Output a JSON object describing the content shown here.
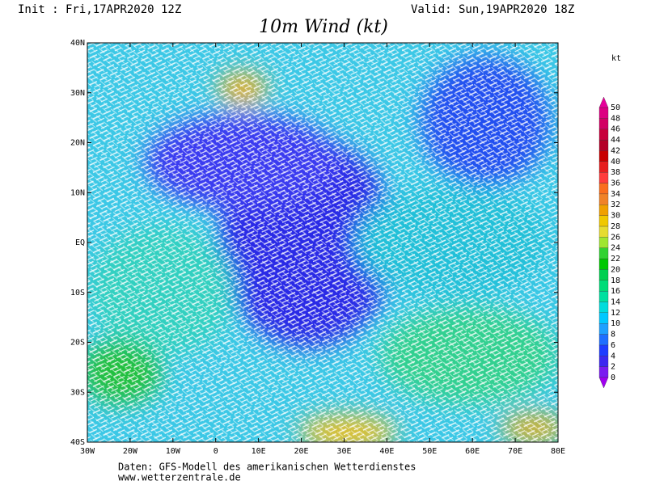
{
  "header": {
    "init": "Init : Fri,17APR2020 12Z",
    "valid": "Valid: Sun,19APR2020 18Z",
    "title": "10m Wind (kt)"
  },
  "map": {
    "lonlim": [
      -30,
      80
    ],
    "latlim": [
      -40,
      40
    ],
    "lon_ticks": [
      {
        "value": -30,
        "label": "30W"
      },
      {
        "value": -20,
        "label": "20W"
      },
      {
        "value": -10,
        "label": "10W"
      },
      0,
      {
        "value": 10,
        "label": "10E"
      },
      {
        "value": 20,
        "label": "20E"
      },
      {
        "value": 30,
        "label": "30E"
      },
      {
        "value": 40,
        "label": "40E"
      },
      {
        "value": 50,
        "label": "50E"
      },
      {
        "value": 60,
        "label": "60E"
      },
      {
        "value": 70,
        "label": "70E"
      },
      {
        "value": 80,
        "label": "80E"
      }
    ],
    "lat_ticks": [
      {
        "value": 40,
        "label": "40N"
      },
      {
        "value": 30,
        "label": "30N"
      },
      {
        "value": 20,
        "label": "20N"
      },
      {
        "value": 10,
        "label": "10N"
      },
      {
        "value": 0,
        "label": "EQ"
      },
      {
        "value": -10,
        "label": "10S"
      },
      {
        "value": -20,
        "label": "20S"
      },
      {
        "value": -30,
        "label": "30S"
      },
      {
        "value": -40,
        "label": "40S"
      }
    ]
  },
  "colorbar": {
    "unit": "kt",
    "levels": [
      0,
      2,
      4,
      6,
      8,
      10,
      12,
      14,
      16,
      18,
      20,
      22,
      24,
      26,
      28,
      30,
      32,
      34,
      36,
      38,
      40,
      42,
      44,
      46,
      48,
      50
    ],
    "colors": [
      "#7a1cf0",
      "#3c28f0",
      "#1e3cff",
      "#1e6eff",
      "#1ea0ff",
      "#00c8ff",
      "#00dcdc",
      "#00e0a0",
      "#00dc78",
      "#00d050",
      "#00c800",
      "#32d232",
      "#a0e632",
      "#e6dc32",
      "#f0c800",
      "#f0a000",
      "#f08228",
      "#fa6e1e",
      "#ff3c3c",
      "#e61e1e",
      "#c80000",
      "#b40028",
      "#c8003c",
      "#d20064",
      "#dc0082"
    ],
    "under_color": "#a000f0",
    "over_color": "#e6009a"
  },
  "footer": {
    "source": "Daten: GFS-Modell des amerikanischen Wetterdienstes",
    "url": "www.wetterzentrale.de"
  }
}
